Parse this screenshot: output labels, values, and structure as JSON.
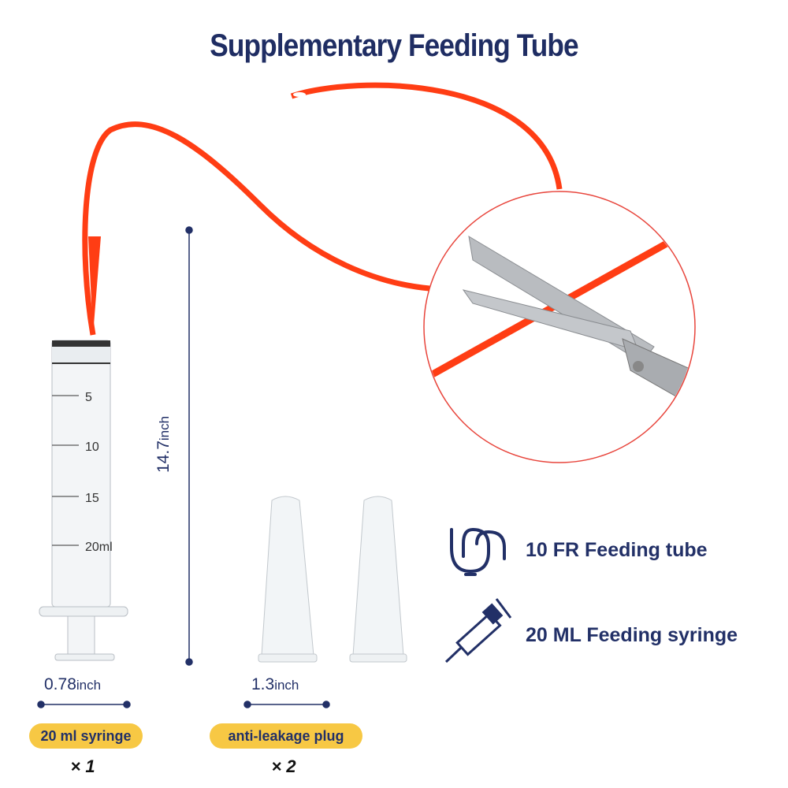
{
  "title": "Supplementary Feeding Tube",
  "colors": {
    "navy": "#223067",
    "tube_orange": "#ff3d14",
    "badge_yellow": "#f7c844",
    "circle_red": "#e8453c"
  },
  "syringe_scale": [
    "5",
    "10",
    "15",
    "20ml"
  ],
  "dimensions": {
    "tube_length": {
      "value": "14.7",
      "unit": "inch"
    },
    "syringe_width": {
      "value": "0.78",
      "unit": "inch"
    },
    "plug_width": {
      "value": "1.3",
      "unit": "inch"
    }
  },
  "components": [
    {
      "label": "20 ml syringe",
      "quantity": "× 1"
    },
    {
      "label": "anti-leakage plug",
      "quantity": "× 2"
    }
  ],
  "features": [
    {
      "icon": "tube-icon",
      "label": "10 FR Feeding tube"
    },
    {
      "icon": "syringe-icon",
      "label": "20 ML Feeding syringe"
    }
  ]
}
